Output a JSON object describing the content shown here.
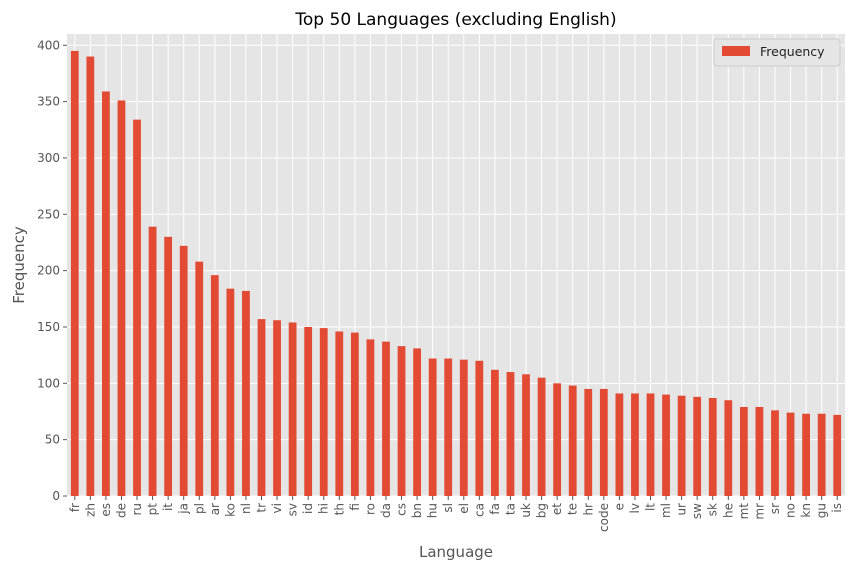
{
  "chart_data": {
    "type": "bar",
    "title": "Top 50 Languages (excluding English)",
    "xlabel": "Language",
    "ylabel": "Frequency",
    "ylim": [
      0,
      410
    ],
    "yticks": [
      0,
      50,
      100,
      150,
      200,
      250,
      300,
      350,
      400
    ],
    "grid": true,
    "legend_position": "top-right",
    "colors": {
      "bar": "#E24A33",
      "background": "#E5E5E5",
      "grid": "#FFFFFF"
    },
    "categories": [
      "fr",
      "zh",
      "es",
      "de",
      "ru",
      "pt",
      "it",
      "ja",
      "pl",
      "ar",
      "ko",
      "nl",
      "tr",
      "vi",
      "sv",
      "id",
      "hi",
      "th",
      "fi",
      "ro",
      "da",
      "cs",
      "bn",
      "hu",
      "sl",
      "el",
      "ca",
      "fa",
      "ta",
      "uk",
      "bg",
      "et",
      "te",
      "hr",
      "code",
      "e",
      "lv",
      "lt",
      "ml",
      "ur",
      "sw",
      "sk",
      "he",
      "mt",
      "mr",
      "sr",
      "no",
      "kn",
      "gu",
      "is"
    ],
    "series": [
      {
        "name": "Frequency",
        "values": [
          395,
          390,
          359,
          351,
          334,
          239,
          230,
          222,
          208,
          196,
          184,
          182,
          157,
          156,
          154,
          150,
          149,
          146,
          145,
          139,
          137,
          133,
          131,
          122,
          122,
          121,
          120,
          112,
          110,
          108,
          105,
          100,
          98,
          95,
          95,
          91,
          91,
          91,
          90,
          89,
          88,
          87,
          85,
          79,
          79,
          76,
          74,
          73,
          73,
          72
        ]
      }
    ]
  }
}
